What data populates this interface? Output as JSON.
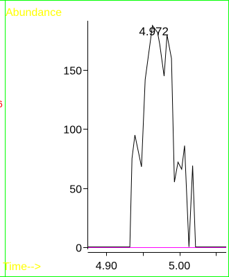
{
  "chart_data": {
    "type": "line",
    "ylabel": "Abundance",
    "xlabel": "Time-->",
    "annotation": "4.972",
    "left_edge_fragment": "6",
    "xlim": [
      4.874,
      5.064
    ],
    "ylim": [
      -2,
      192
    ],
    "x_ticks": [
      4.9,
      5.0
    ],
    "x_tick_labels": [
      "4.90",
      "5.00"
    ],
    "x_minor_ticks": [
      4.9,
      4.95,
      5.0,
      5.05
    ],
    "y_ticks": [
      0,
      50,
      100,
      150
    ],
    "y_tick_labels": [
      "0",
      "50",
      "100",
      "150"
    ],
    "baseline": 0,
    "x": [
      4.874,
      4.932,
      4.935,
      4.939,
      4.948,
      4.953,
      4.963,
      4.97,
      4.973,
      4.979,
      4.983,
      4.989,
      4.993,
      4.998,
      5.003,
      5.007,
      5.013,
      5.018,
      5.022,
      5.026,
      5.03,
      5.035,
      5.064
    ],
    "values": [
      0,
      0,
      75,
      95,
      68,
      142,
      188,
      182,
      172,
      145,
      180,
      160,
      55,
      72,
      66,
      86,
      0,
      69,
      0,
      0,
      0,
      0,
      0
    ],
    "colors": {
      "frame": "#00ff00",
      "baseline": "#ff00ff",
      "trace": "#000000",
      "axis_text": "#ffff00",
      "edge_text": "#ff0000"
    }
  }
}
